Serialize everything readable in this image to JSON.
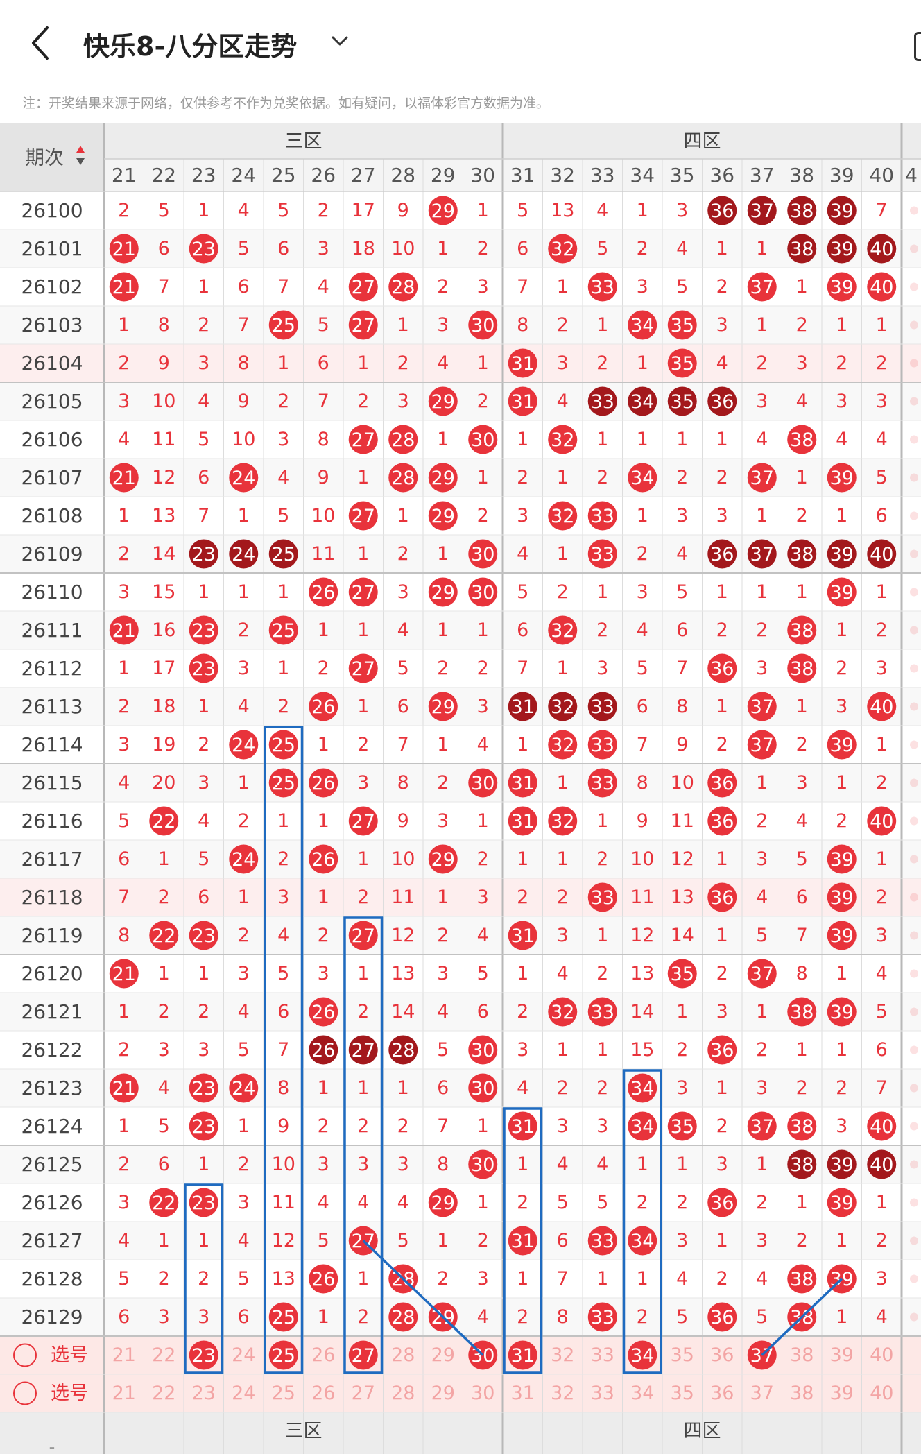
{
  "header": {
    "title": "快乐8-八分区走势",
    "notice": "注：开奖结果来源于网络，仅供参考不作为兑奖依据。如有疑问，以福体彩官方数据为准。"
  },
  "table": {
    "period_label": "期次",
    "zones": [
      "三区",
      "四区"
    ],
    "columns": [
      21,
      22,
      23,
      24,
      25,
      26,
      27,
      28,
      29,
      30,
      31,
      32,
      33,
      34,
      35,
      36,
      37,
      38,
      39,
      40
    ],
    "next_column_partial": "4",
    "select_label": "选号",
    "rows": [
      {
        "period": "26100",
        "cells": [
          2,
          5,
          1,
          4,
          5,
          2,
          17,
          9,
          29,
          1,
          5,
          13,
          4,
          1,
          3,
          36,
          37,
          38,
          39,
          7
        ]
      },
      {
        "period": "26101",
        "cells": [
          21,
          6,
          23,
          5,
          6,
          3,
          18,
          10,
          1,
          2,
          6,
          32,
          5,
          2,
          4,
          1,
          1,
          38,
          39,
          40
        ]
      },
      {
        "period": "26102",
        "cells": [
          21,
          7,
          1,
          6,
          7,
          4,
          27,
          28,
          2,
          3,
          7,
          1,
          33,
          3,
          5,
          2,
          37,
          1,
          39,
          40
        ]
      },
      {
        "period": "26103",
        "cells": [
          1,
          8,
          2,
          7,
          25,
          5,
          27,
          1,
          3,
          30,
          8,
          2,
          1,
          34,
          35,
          3,
          1,
          2,
          1,
          1
        ]
      },
      {
        "period": "26104",
        "cells": [
          2,
          9,
          3,
          8,
          1,
          6,
          1,
          2,
          4,
          1,
          31,
          3,
          2,
          1,
          35,
          4,
          2,
          3,
          2,
          2
        ]
      },
      {
        "period": "26105",
        "cells": [
          3,
          10,
          4,
          9,
          2,
          7,
          2,
          3,
          29,
          2,
          31,
          4,
          33,
          34,
          35,
          36,
          3,
          4,
          3,
          3
        ]
      },
      {
        "period": "26106",
        "cells": [
          4,
          11,
          5,
          10,
          3,
          8,
          27,
          28,
          1,
          30,
          1,
          32,
          1,
          1,
          1,
          1,
          4,
          38,
          4,
          4
        ]
      },
      {
        "period": "26107",
        "cells": [
          21,
          12,
          6,
          24,
          4,
          9,
          1,
          28,
          29,
          1,
          2,
          1,
          2,
          34,
          2,
          2,
          37,
          1,
          39,
          5
        ]
      },
      {
        "period": "26108",
        "cells": [
          1,
          13,
          7,
          1,
          5,
          10,
          27,
          1,
          29,
          2,
          3,
          32,
          33,
          1,
          3,
          3,
          1,
          2,
          1,
          6
        ]
      },
      {
        "period": "26109",
        "cells": [
          2,
          14,
          23,
          24,
          25,
          11,
          1,
          2,
          1,
          30,
          4,
          1,
          33,
          2,
          4,
          36,
          37,
          38,
          39,
          40
        ]
      },
      {
        "period": "26110",
        "cells": [
          3,
          15,
          1,
          1,
          1,
          26,
          27,
          3,
          29,
          30,
          5,
          2,
          1,
          3,
          5,
          1,
          1,
          1,
          39,
          1
        ]
      },
      {
        "period": "26111",
        "cells": [
          21,
          16,
          23,
          2,
          25,
          1,
          1,
          4,
          1,
          1,
          6,
          32,
          2,
          4,
          6,
          2,
          2,
          38,
          1,
          2
        ]
      },
      {
        "period": "26112",
        "cells": [
          1,
          17,
          23,
          3,
          1,
          2,
          27,
          5,
          2,
          2,
          7,
          1,
          3,
          5,
          7,
          36,
          3,
          38,
          2,
          3
        ]
      },
      {
        "period": "26113",
        "cells": [
          2,
          18,
          1,
          4,
          2,
          26,
          1,
          6,
          29,
          3,
          31,
          32,
          33,
          6,
          8,
          1,
          37,
          1,
          3,
          40
        ]
      },
      {
        "period": "26114",
        "cells": [
          3,
          19,
          2,
          24,
          25,
          1,
          2,
          7,
          1,
          4,
          1,
          32,
          33,
          7,
          9,
          2,
          37,
          2,
          39,
          1
        ]
      },
      {
        "period": "26115",
        "cells": [
          4,
          20,
          3,
          1,
          25,
          26,
          3,
          8,
          2,
          30,
          31,
          1,
          33,
          8,
          10,
          36,
          1,
          3,
          1,
          2
        ]
      },
      {
        "period": "26116",
        "cells": [
          5,
          22,
          4,
          2,
          1,
          1,
          27,
          9,
          3,
          1,
          31,
          32,
          1,
          9,
          11,
          36,
          2,
          4,
          2,
          40
        ]
      },
      {
        "period": "26117",
        "cells": [
          6,
          1,
          5,
          24,
          2,
          26,
          1,
          10,
          29,
          2,
          1,
          1,
          2,
          10,
          12,
          1,
          3,
          5,
          39,
          1
        ]
      },
      {
        "period": "26118",
        "cells": [
          7,
          2,
          6,
          1,
          3,
          1,
          2,
          11,
          1,
          3,
          2,
          2,
          33,
          11,
          13,
          36,
          4,
          6,
          39,
          2
        ]
      },
      {
        "period": "26119",
        "cells": [
          8,
          22,
          23,
          2,
          4,
          2,
          27,
          12,
          2,
          4,
          31,
          3,
          1,
          12,
          14,
          1,
          5,
          7,
          39,
          3
        ]
      },
      {
        "period": "26120",
        "cells": [
          21,
          1,
          1,
          3,
          5,
          3,
          1,
          13,
          3,
          5,
          1,
          4,
          2,
          13,
          35,
          2,
          37,
          8,
          1,
          4
        ]
      },
      {
        "period": "26121",
        "cells": [
          1,
          2,
          2,
          4,
          6,
          26,
          2,
          14,
          4,
          6,
          2,
          32,
          33,
          14,
          1,
          3,
          1,
          38,
          39,
          5
        ]
      },
      {
        "period": "26122",
        "cells": [
          2,
          3,
          3,
          5,
          7,
          26,
          27,
          28,
          5,
          30,
          3,
          1,
          1,
          15,
          2,
          36,
          2,
          1,
          1,
          6
        ]
      },
      {
        "period": "26123",
        "cells": [
          21,
          4,
          23,
          24,
          8,
          1,
          1,
          1,
          6,
          30,
          4,
          2,
          2,
          34,
          3,
          1,
          3,
          2,
          2,
          7
        ]
      },
      {
        "period": "26124",
        "cells": [
          1,
          5,
          23,
          1,
          9,
          2,
          2,
          2,
          7,
          1,
          31,
          3,
          3,
          34,
          35,
          2,
          37,
          38,
          3,
          40
        ]
      },
      {
        "period": "26125",
        "cells": [
          2,
          6,
          1,
          2,
          10,
          3,
          3,
          3,
          8,
          30,
          1,
          4,
          4,
          1,
          1,
          3,
          1,
          38,
          39,
          40
        ]
      },
      {
        "period": "26126",
        "cells": [
          3,
          22,
          23,
          3,
          11,
          4,
          4,
          4,
          29,
          1,
          2,
          5,
          5,
          2,
          2,
          36,
          2,
          1,
          39,
          1
        ]
      },
      {
        "period": "26127",
        "cells": [
          4,
          1,
          1,
          4,
          12,
          5,
          27,
          5,
          1,
          2,
          31,
          6,
          33,
          34,
          3,
          1,
          3,
          2,
          1,
          2
        ]
      },
      {
        "period": "26128",
        "cells": [
          5,
          2,
          2,
          5,
          13,
          26,
          1,
          28,
          2,
          3,
          1,
          7,
          1,
          1,
          4,
          2,
          4,
          38,
          39,
          3
        ]
      },
      {
        "period": "26129",
        "cells": [
          6,
          3,
          3,
          6,
          25,
          1,
          2,
          28,
          29,
          4,
          2,
          8,
          33,
          2,
          5,
          36,
          5,
          38,
          1,
          4
        ]
      }
    ],
    "selected_numbers": [
      23,
      25,
      27,
      30,
      31,
      34,
      37
    ],
    "highlight_cells": {
      "26104": "light",
      "26118": "light"
    }
  },
  "colors": {
    "ball": "#e8333b",
    "ball_dark": "#a3181c",
    "miss_text": "#e8333b",
    "frame": "#1f6bc0",
    "select_bg": "#fde8e6"
  }
}
